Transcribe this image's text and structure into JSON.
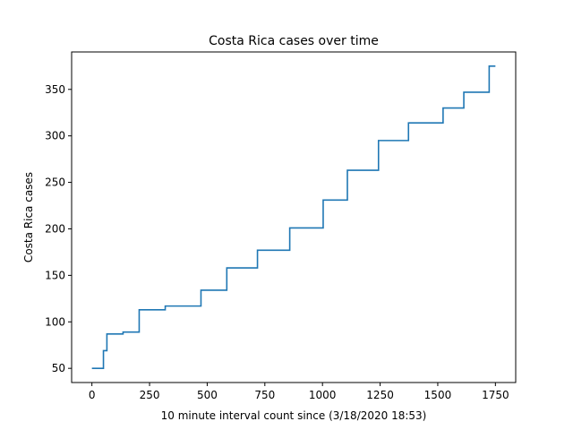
{
  "chart_data": {
    "type": "line",
    "title": "Costa Rica cases over time",
    "xlabel": "10 minute interval count since (3/18/2020 18:53)",
    "ylabel": "Costa Rica cases",
    "xlim": [
      -88,
      1838
    ],
    "ylim": [
      34.75,
      390.25
    ],
    "xticks": [
      0,
      250,
      500,
      750,
      1000,
      1250,
      1500,
      1750
    ],
    "yticks": [
      50,
      100,
      150,
      200,
      250,
      300,
      350
    ],
    "grid": false,
    "series": [
      {
        "color": "#1f77b4",
        "x": [
          0,
          50,
          50,
          57,
          57,
          65,
          65,
          135,
          135,
          205,
          205,
          318,
          318,
          473,
          473,
          585,
          585,
          718,
          718,
          858,
          858,
          1003,
          1003,
          1108,
          1108,
          1243,
          1243,
          1373,
          1373,
          1523,
          1523,
          1613,
          1613,
          1723,
          1723,
          1750
        ],
        "y": [
          50,
          50,
          69,
          69,
          69,
          69,
          87,
          87,
          89,
          89,
          113,
          113,
          117,
          117,
          134,
          134,
          158,
          158,
          177,
          177,
          201,
          201,
          231,
          231,
          263,
          263,
          295,
          295,
          314,
          314,
          330,
          330,
          347,
          347,
          375,
          375
        ]
      }
    ]
  }
}
